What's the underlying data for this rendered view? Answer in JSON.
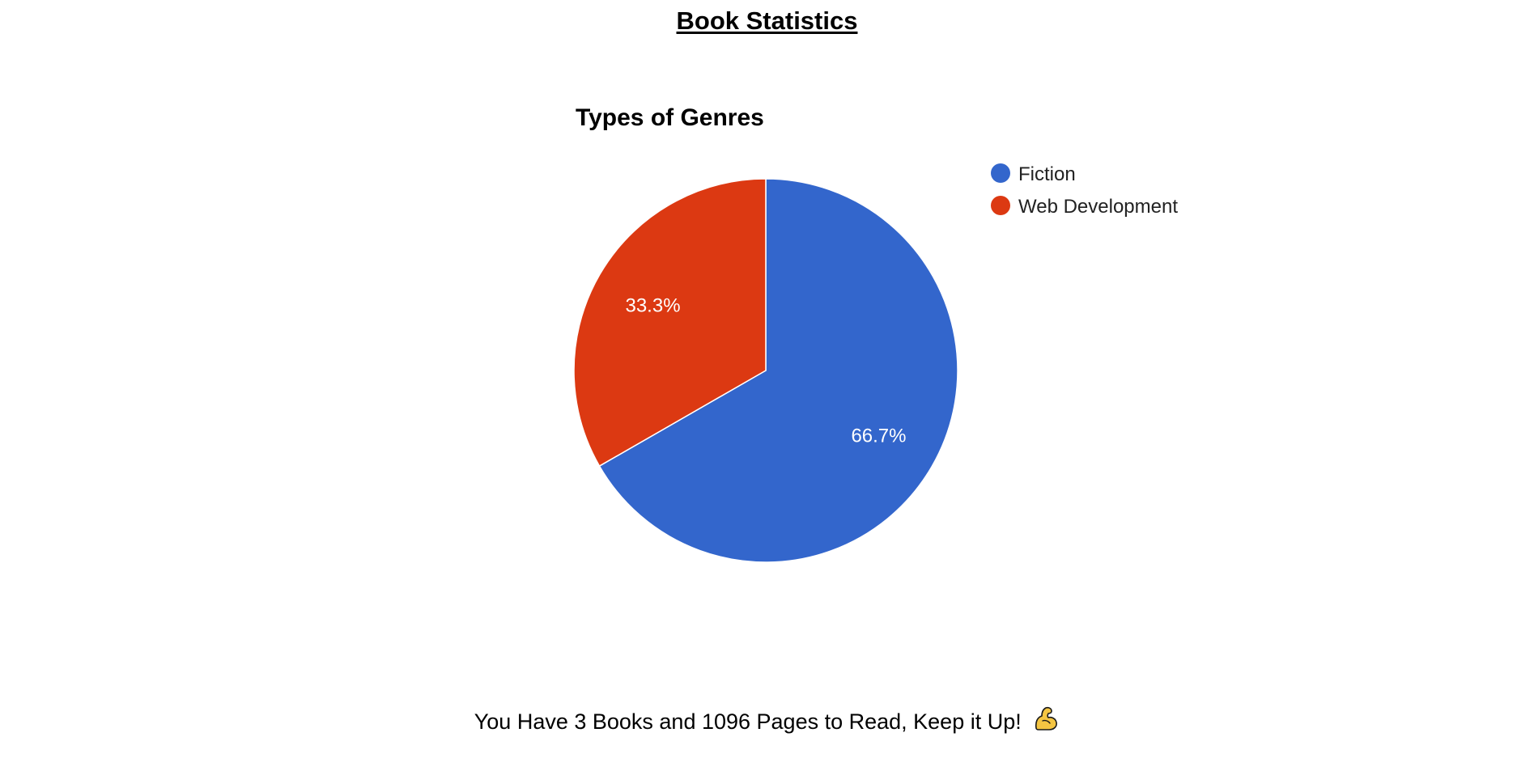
{
  "page": {
    "title": "Book Statistics",
    "footer_text": "You Have 3 Books and 1096 Pages to Read, Keep it Up!",
    "footer_icon": "flexed-biceps-icon"
  },
  "chart_data": {
    "type": "pie",
    "title": "Types of Genres",
    "legend_position": "right",
    "slices": [
      {
        "label": "Fiction",
        "value": 66.7,
        "display": "66.7%",
        "color": "#3366cc"
      },
      {
        "label": "Web Development",
        "value": 33.3,
        "display": "33.3%",
        "color": "#dc3912"
      }
    ]
  }
}
